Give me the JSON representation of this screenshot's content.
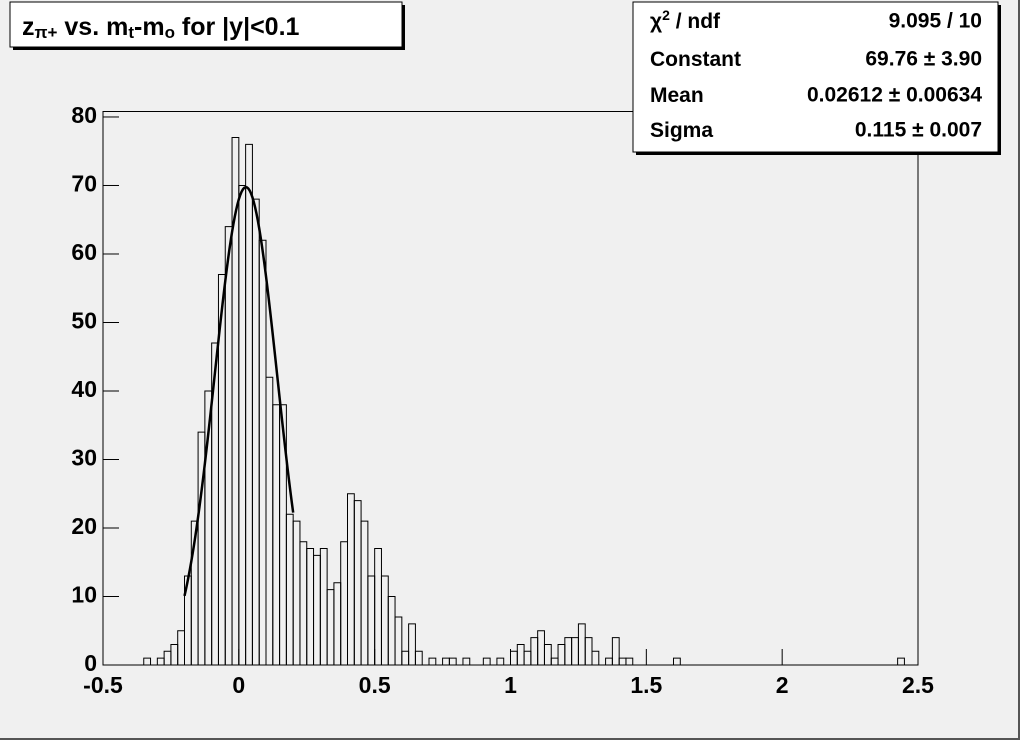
{
  "chart_data": {
    "type": "histogram",
    "title_parts": [
      "z",
      "π+",
      " vs. m",
      "t",
      "-m",
      "o",
      " for |y|<0.1"
    ],
    "bins": [
      -0.5,
      -0.475,
      -0.45,
      -0.425,
      -0.4,
      -0.375,
      -0.35,
      -0.325,
      -0.3,
      -0.275,
      -0.25,
      -0.225,
      -0.2,
      -0.175,
      -0.15,
      -0.125,
      -0.1,
      -0.075,
      -0.05,
      -0.025,
      0,
      0.025,
      0.05,
      0.075,
      0.1,
      0.125,
      0.15,
      0.175,
      0.2,
      0.225,
      0.25,
      0.275,
      0.3,
      0.325,
      0.35,
      0.375,
      0.4,
      0.425,
      0.45,
      0.475,
      0.5,
      0.525,
      0.55,
      0.575,
      0.6,
      0.625,
      0.65,
      0.675,
      0.7,
      0.725,
      0.75,
      0.775,
      0.8,
      0.825,
      0.85,
      0.875,
      0.9,
      0.925,
      0.95,
      0.975,
      1,
      1.025,
      1.05,
      1.075,
      1.1,
      1.125,
      1.15,
      1.175,
      1.2,
      1.225,
      1.25,
      1.275,
      1.3,
      1.325,
      1.35,
      1.375,
      1.4,
      1.425,
      1.45,
      1.475,
      1.5,
      1.525,
      1.55,
      1.575,
      1.6,
      1.625,
      1.65,
      1.675,
      1.7,
      1.725,
      1.75,
      1.775,
      1.8,
      1.825,
      1.85,
      1.875,
      1.9,
      1.925,
      1.95,
      1.975,
      2,
      2.025,
      2.05,
      2.075,
      2.1,
      2.125,
      2.15,
      2.175,
      2.2,
      2.225,
      2.25,
      2.275,
      2.3,
      2.325,
      2.35,
      2.375,
      2.4,
      2.425,
      2.45,
      2.475,
      2.5
    ],
    "values": [
      0,
      0,
      0,
      0,
      0,
      0,
      1,
      0,
      1,
      2,
      3,
      5,
      13,
      21,
      34,
      40,
      47,
      57,
      64,
      77,
      70,
      76,
      68,
      62,
      42,
      38,
      38,
      22,
      21,
      18,
      17,
      16,
      17,
      11,
      12,
      18,
      25,
      24,
      21,
      13,
      17,
      13,
      10,
      7,
      2,
      6,
      2,
      0,
      1,
      0,
      1,
      1,
      0,
      1,
      0,
      0,
      1,
      0,
      1,
      0,
      2,
      3,
      2,
      4,
      5,
      3,
      1,
      3,
      4,
      4,
      6,
      4,
      2,
      0,
      1,
      4,
      1,
      1,
      0,
      0,
      0,
      0,
      0,
      0,
      1,
      0,
      0,
      0,
      0,
      0,
      0,
      0,
      0,
      0,
      0,
      0,
      0,
      0,
      0,
      0,
      0,
      0,
      0,
      0,
      0,
      0,
      0,
      0,
      0,
      0,
      0,
      0,
      0,
      0,
      0,
      0,
      0,
      1,
      0,
      0
    ],
    "color": "#000000",
    "xlim": [
      -0.5,
      2.5
    ],
    "ylim": [
      0,
      80.8
    ],
    "xticks": [
      -0.5,
      0,
      0.5,
      1,
      1.5,
      2,
      2.5
    ],
    "yticks": [
      0,
      10,
      20,
      30,
      40,
      50,
      60,
      70,
      80
    ],
    "fit": {
      "constant": 69.76,
      "mean": 0.02612,
      "sigma": 0.115,
      "range": [
        -0.2,
        0.2
      ],
      "color": "#000000"
    },
    "stats": [
      {
        "label": [
          "χ",
          "2",
          " / ndf"
        ],
        "value": "9.095 / 10"
      },
      {
        "label": [
          "Constant"
        ],
        "value": "69.76 ± 3.90"
      },
      {
        "label": [
          "Mean"
        ],
        "value": "0.02612 ± 0.00634"
      },
      {
        "label": [
          "Sigma"
        ],
        "value": "0.115 ± 0.007"
      }
    ]
  }
}
